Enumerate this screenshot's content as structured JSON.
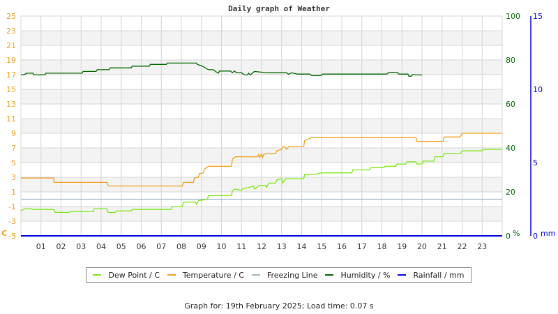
{
  "title": "Daily graph of Weather",
  "footer": "Graph for: 19th February 2025; Load time: 0.07 s",
  "colors": {
    "dew_point": "#7fe817",
    "temperature": "#f0a020",
    "freezing": "#a0b4cc",
    "humidity": "#006400",
    "rainfall": "#0000dd",
    "temp_axis": "#f0a020",
    "humidity_axis": "#006400",
    "rain_axis": "#0000dd",
    "grid": "#d4d4d4",
    "band": "#f3f3f3"
  },
  "legend": [
    {
      "label": "Dew Point / C",
      "color": "#7fe817"
    },
    {
      "label": "Temperature / C",
      "color": "#f0a020"
    },
    {
      "label": "Freezing Line",
      "color": "#a0b4cc"
    },
    {
      "label": "Humidity / %",
      "color": "#006400"
    },
    {
      "label": "Rainfall / mm",
      "color": "#0000dd"
    }
  ],
  "chart_data": {
    "type": "line",
    "title": "Daily graph of Weather",
    "xlabel": "Hour",
    "x_ticks": [
      "01",
      "02",
      "03",
      "04",
      "05",
      "06",
      "07",
      "08",
      "09",
      "10",
      "11",
      "12",
      "13",
      "14",
      "15",
      "16",
      "17",
      "18",
      "19",
      "20",
      "21",
      "22",
      "23"
    ],
    "xlim": [
      0,
      24
    ],
    "left_axis": {
      "label": "C",
      "ticks": [
        25,
        23,
        21,
        19,
        17,
        15,
        13,
        11,
        9,
        7,
        5,
        3,
        1,
        -1,
        -3,
        -5
      ],
      "ylim": [
        -5,
        25
      ]
    },
    "right_axis_humidity": {
      "label": "%",
      "ticks": [
        100,
        80,
        60,
        40,
        20,
        0
      ],
      "ylim": [
        0,
        100
      ]
    },
    "right_axis_rain": {
      "label": "mm",
      "ticks": [
        15,
        10,
        5,
        0
      ],
      "ylim": [
        0,
        15
      ]
    },
    "grid": true,
    "legend_position": "bottom",
    "series": [
      {
        "name": "Temperature / C",
        "axis": "left",
        "points": [
          [
            0,
            2.9
          ],
          [
            1.65,
            2.9
          ],
          [
            1.65,
            2.3
          ],
          [
            4.3,
            2.3
          ],
          [
            4.35,
            1.8
          ],
          [
            8.05,
            1.8
          ],
          [
            8.1,
            2.3
          ],
          [
            8.6,
            2.3
          ],
          [
            8.65,
            2.9
          ],
          [
            8.85,
            3.0
          ],
          [
            8.9,
            3.5
          ],
          [
            9.1,
            3.6
          ],
          [
            9.15,
            4.1
          ],
          [
            9.35,
            4.5
          ],
          [
            10.5,
            4.5
          ],
          [
            10.55,
            5.5
          ],
          [
            10.7,
            5.8
          ],
          [
            11.8,
            5.8
          ],
          [
            11.85,
            6.1
          ],
          [
            11.9,
            5.7
          ],
          [
            12.0,
            6.2
          ],
          [
            12.05,
            5.7
          ],
          [
            12.1,
            6.1
          ],
          [
            12.2,
            6.2
          ],
          [
            12.7,
            6.2
          ],
          [
            12.75,
            6.6
          ],
          [
            13.0,
            6.8
          ],
          [
            13.05,
            7.1
          ],
          [
            13.15,
            7.2
          ],
          [
            13.25,
            6.8
          ],
          [
            13.35,
            7.2
          ],
          [
            14.1,
            7.2
          ],
          [
            14.15,
            8.0
          ],
          [
            14.5,
            8.4
          ],
          [
            19.7,
            8.4
          ],
          [
            19.75,
            7.9
          ],
          [
            21.05,
            7.9
          ],
          [
            21.1,
            8.5
          ],
          [
            21.9,
            8.5
          ],
          [
            22.0,
            9.0
          ],
          [
            24,
            9.0
          ]
        ]
      },
      {
        "name": "Dew Point / C",
        "axis": "left",
        "points": [
          [
            0,
            -1.6
          ],
          [
            0.2,
            -1.3
          ],
          [
            0.5,
            -1.3
          ],
          [
            0.55,
            -1.4
          ],
          [
            1.65,
            -1.4
          ],
          [
            1.7,
            -1.8
          ],
          [
            2.4,
            -1.8
          ],
          [
            2.45,
            -1.7
          ],
          [
            3.6,
            -1.7
          ],
          [
            3.65,
            -1.3
          ],
          [
            4.3,
            -1.3
          ],
          [
            4.35,
            -1.8
          ],
          [
            4.7,
            -1.8
          ],
          [
            4.75,
            -1.6
          ],
          [
            5.5,
            -1.6
          ],
          [
            5.55,
            -1.4
          ],
          [
            7.5,
            -1.4
          ],
          [
            7.55,
            -1.0
          ],
          [
            8.05,
            -1.0
          ],
          [
            8.1,
            -0.4
          ],
          [
            8.7,
            -0.4
          ],
          [
            8.75,
            -0.7
          ],
          [
            8.85,
            -0.2
          ],
          [
            9.3,
            0.0
          ],
          [
            9.35,
            0.5
          ],
          [
            10.5,
            0.5
          ],
          [
            10.55,
            1.2
          ],
          [
            10.7,
            1.4
          ],
          [
            11.0,
            1.2
          ],
          [
            11.05,
            1.4
          ],
          [
            11.35,
            1.6
          ],
          [
            11.6,
            1.8
          ],
          [
            11.65,
            1.4
          ],
          [
            11.9,
            1.9
          ],
          [
            12.2,
            1.9
          ],
          [
            12.25,
            1.6
          ],
          [
            12.35,
            2.2
          ],
          [
            12.7,
            2.2
          ],
          [
            12.75,
            2.6
          ],
          [
            13.0,
            2.8
          ],
          [
            13.05,
            2.2
          ],
          [
            13.2,
            2.8
          ],
          [
            14.1,
            2.8
          ],
          [
            14.15,
            3.4
          ],
          [
            14.7,
            3.4
          ],
          [
            15.0,
            3.6
          ],
          [
            16.5,
            3.6
          ],
          [
            16.55,
            4.0
          ],
          [
            17.4,
            4.0
          ],
          [
            17.45,
            4.3
          ],
          [
            18.1,
            4.3
          ],
          [
            18.15,
            4.5
          ],
          [
            18.7,
            4.5
          ],
          [
            18.75,
            4.8
          ],
          [
            19.2,
            4.8
          ],
          [
            19.25,
            5.1
          ],
          [
            19.7,
            5.1
          ],
          [
            19.75,
            4.8
          ],
          [
            20.0,
            4.8
          ],
          [
            20.05,
            5.2
          ],
          [
            20.6,
            5.2
          ],
          [
            20.65,
            5.8
          ],
          [
            21.05,
            5.8
          ],
          [
            21.1,
            6.2
          ],
          [
            21.9,
            6.2
          ],
          [
            22.0,
            6.6
          ],
          [
            23.0,
            6.6
          ],
          [
            23.05,
            6.8
          ],
          [
            24,
            6.8
          ]
        ]
      },
      {
        "name": "Freezing Line",
        "axis": "left",
        "points": [
          [
            0,
            0
          ],
          [
            24,
            0
          ]
        ]
      },
      {
        "name": "Humidity / %",
        "axis": "right_humidity",
        "points": [
          [
            0,
            73.3
          ],
          [
            0.15,
            73.3
          ],
          [
            0.3,
            74.0
          ],
          [
            0.6,
            74.0
          ],
          [
            0.65,
            73.3
          ],
          [
            1.2,
            73.3
          ],
          [
            1.25,
            74.0
          ],
          [
            3.05,
            74.0
          ],
          [
            3.1,
            74.8
          ],
          [
            3.75,
            74.8
          ],
          [
            3.8,
            75.6
          ],
          [
            4.4,
            75.6
          ],
          [
            4.45,
            76.4
          ],
          [
            5.5,
            76.4
          ],
          [
            5.55,
            77.2
          ],
          [
            6.4,
            77.2
          ],
          [
            6.45,
            78.0
          ],
          [
            7.25,
            78.0
          ],
          [
            7.3,
            78.6
          ],
          [
            8.75,
            78.6
          ],
          [
            8.8,
            78.0
          ],
          [
            9.05,
            77.2
          ],
          [
            9.2,
            76.4
          ],
          [
            9.35,
            75.6
          ],
          [
            9.6,
            75.6
          ],
          [
            9.7,
            74.8
          ],
          [
            9.85,
            74.0
          ],
          [
            9.9,
            75.0
          ],
          [
            10.45,
            75.0
          ],
          [
            10.55,
            74.2
          ],
          [
            10.65,
            75.0
          ],
          [
            10.75,
            74.2
          ],
          [
            11.0,
            74.2
          ],
          [
            11.15,
            73.2
          ],
          [
            11.3,
            73.2
          ],
          [
            11.35,
            74.0
          ],
          [
            11.45,
            73.2
          ],
          [
            11.55,
            74.2
          ],
          [
            11.65,
            74.8
          ],
          [
            12.25,
            74.2
          ],
          [
            13.25,
            74.2
          ],
          [
            13.35,
            73.5
          ],
          [
            13.5,
            74.2
          ],
          [
            13.8,
            73.6
          ],
          [
            14.4,
            73.6
          ],
          [
            14.5,
            72.9
          ],
          [
            14.95,
            72.9
          ],
          [
            15.05,
            73.6
          ],
          [
            18.25,
            73.6
          ],
          [
            18.35,
            74.4
          ],
          [
            18.75,
            74.4
          ],
          [
            18.85,
            73.6
          ],
          [
            19.3,
            73.6
          ],
          [
            19.35,
            72.6
          ],
          [
            19.45,
            72.6
          ],
          [
            19.55,
            73.4
          ],
          [
            19.7,
            73.2
          ],
          [
            20.0,
            73.2
          ]
        ]
      },
      {
        "name": "Rainfall / mm",
        "axis": "right_rain",
        "points": [
          [
            0,
            0
          ],
          [
            24,
            0
          ]
        ]
      }
    ]
  }
}
